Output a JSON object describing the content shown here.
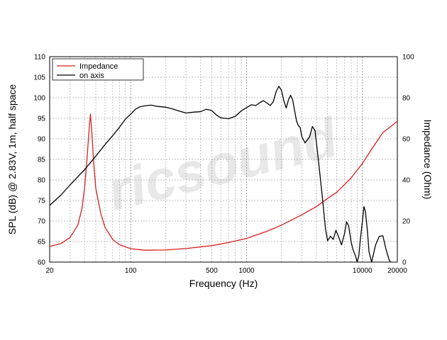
{
  "chart_data": {
    "type": "line",
    "xlabel": "Frequency (Hz)",
    "ylabel_left": "SPL (dB) @ 2.83V, 1m, half space",
    "ylabel_right": "Impedance (Ohm)",
    "x_scale": "log",
    "xlim": [
      20,
      20000
    ],
    "ylim_left": [
      60,
      110
    ],
    "ylim_right": [
      0,
      100
    ],
    "x_tick_labels": [
      "20",
      "100",
      "500",
      "1000",
      "10000",
      "20000"
    ],
    "y_left_ticks": [
      "60",
      "65",
      "70",
      "75",
      "80",
      "85",
      "90",
      "95",
      "100",
      "105",
      "110"
    ],
    "y_right_ticks": [
      "0",
      "20",
      "40",
      "60",
      "80",
      "100"
    ],
    "grid": true,
    "legend_position": "top-left",
    "watermark": "ricsound",
    "series": [
      {
        "name": "Impedance",
        "axis": "right",
        "color": "#d42020",
        "points": [
          [
            20,
            7.6
          ],
          [
            25,
            9
          ],
          [
            30,
            12
          ],
          [
            35,
            18
          ],
          [
            38,
            26
          ],
          [
            40,
            36
          ],
          [
            42,
            50
          ],
          [
            44,
            66
          ],
          [
            45,
            72
          ],
          [
            46,
            65
          ],
          [
            48,
            48
          ],
          [
            50,
            36
          ],
          [
            55,
            24
          ],
          [
            60,
            17
          ],
          [
            70,
            11
          ],
          [
            80,
            8.5
          ],
          [
            100,
            6.5
          ],
          [
            130,
            5.8
          ],
          [
            200,
            5.9
          ],
          [
            300,
            6.6
          ],
          [
            500,
            8
          ],
          [
            700,
            9.5
          ],
          [
            1000,
            11.5
          ],
          [
            1500,
            15
          ],
          [
            2000,
            18
          ],
          [
            3000,
            23
          ],
          [
            4000,
            27
          ],
          [
            5000,
            31
          ],
          [
            6000,
            34
          ],
          [
            8000,
            41
          ],
          [
            10000,
            48
          ],
          [
            12000,
            55
          ],
          [
            15000,
            63
          ],
          [
            20000,
            68.5
          ]
        ]
      },
      {
        "name": "on axis",
        "axis": "left",
        "color": "#000000",
        "points": [
          [
            20,
            73.8
          ],
          [
            25,
            76.3
          ],
          [
            30,
            78.8
          ],
          [
            40,
            82.5
          ],
          [
            50,
            85.8
          ],
          [
            60,
            88.6
          ],
          [
            70,
            90.8
          ],
          [
            80,
            92.8
          ],
          [
            90,
            94.8
          ],
          [
            100,
            96.0
          ],
          [
            110,
            97.2
          ],
          [
            120,
            97.8
          ],
          [
            130,
            98.0
          ],
          [
            150,
            98.2
          ],
          [
            170,
            97.9
          ],
          [
            200,
            97.7
          ],
          [
            230,
            97.3
          ],
          [
            260,
            96.8
          ],
          [
            300,
            96.3
          ],
          [
            350,
            96.5
          ],
          [
            400,
            96.6
          ],
          [
            450,
            97.2
          ],
          [
            500,
            96.9
          ],
          [
            550,
            95.8
          ],
          [
            600,
            95.1
          ],
          [
            700,
            94.9
          ],
          [
            800,
            95.5
          ],
          [
            900,
            96.8
          ],
          [
            1000,
            97.6
          ],
          [
            1100,
            98.3
          ],
          [
            1200,
            98.1
          ],
          [
            1300,
            98.8
          ],
          [
            1400,
            99.3
          ],
          [
            1500,
            98.7
          ],
          [
            1600,
            98.1
          ],
          [
            1700,
            99.0
          ],
          [
            1800,
            101.5
          ],
          [
            1900,
            102.8
          ],
          [
            2000,
            101.8
          ],
          [
            2100,
            99.2
          ],
          [
            2200,
            97.5
          ],
          [
            2300,
            99.5
          ],
          [
            2400,
            100.6
          ],
          [
            2500,
            99.5
          ],
          [
            2600,
            96.8
          ],
          [
            2700,
            94.3
          ],
          [
            2800,
            93.2
          ],
          [
            2900,
            92.8
          ],
          [
            3000,
            90.5
          ],
          [
            3200,
            89.0
          ],
          [
            3500,
            90.5
          ],
          [
            3700,
            93.0
          ],
          [
            3900,
            92.0
          ],
          [
            4200,
            84.0
          ],
          [
            4500,
            76.0
          ],
          [
            4800,
            68.0
          ],
          [
            5000,
            65.2
          ],
          [
            5300,
            66.3
          ],
          [
            5600,
            65.5
          ],
          [
            5900,
            67.7
          ],
          [
            6200,
            66.3
          ],
          [
            6600,
            64.2
          ],
          [
            7000,
            66.9
          ],
          [
            7300,
            69.8
          ],
          [
            7600,
            68.8
          ],
          [
            8000,
            64.8
          ],
          [
            8300,
            63.0
          ],
          [
            8700,
            61.5
          ],
          [
            9000,
            60.0
          ],
          [
            9300,
            61.5
          ],
          [
            9600,
            65.5
          ],
          [
            10000,
            70.0
          ],
          [
            10300,
            73.5
          ],
          [
            10600,
            72.3
          ],
          [
            11000,
            68.0
          ],
          [
            11400,
            62.5
          ],
          [
            12000,
            60.0
          ],
          [
            13000,
            64.2
          ],
          [
            14000,
            66.3
          ],
          [
            15000,
            66.4
          ],
          [
            16000,
            63.0
          ],
          [
            17000,
            60.5
          ],
          [
            17500,
            60.0
          ]
        ]
      }
    ]
  }
}
